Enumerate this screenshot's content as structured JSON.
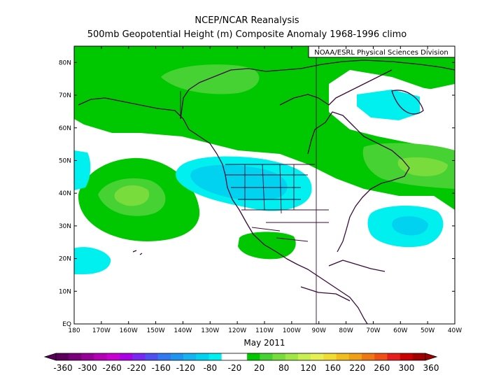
{
  "title": {
    "line1": "NCEP/NCAR Reanalysis",
    "line2": "500mb Geopotential Height (m) Composite Anomaly 1968-1996 climo"
  },
  "credit": "NOAA/ESRL Physical Sciences Division",
  "period_label": "May 2011",
  "axes": {
    "lon_labels": [
      "180",
      "170W",
      "160W",
      "150W",
      "140W",
      "130W",
      "120W",
      "110W",
      "100W",
      "90W",
      "80W",
      "70W",
      "60W",
      "50W",
      "40W"
    ],
    "lat_labels": [
      "EQ",
      "10N",
      "20N",
      "30N",
      "40N",
      "50N",
      "60N",
      "70N",
      "80N"
    ],
    "lon_range": [
      -180,
      -40
    ],
    "lat_range": [
      0,
      85
    ]
  },
  "colorbar": {
    "labels": [
      "-360",
      "-300",
      "-260",
      "-220",
      "-160",
      "-120",
      "-80",
      "-20",
      "20",
      "80",
      "120",
      "160",
      "220",
      "260",
      "300",
      "360"
    ],
    "colors": [
      "#5a005a",
      "#780078",
      "#960096",
      "#b400b4",
      "#c800d2",
      "#aa00e6",
      "#7828f0",
      "#5050f0",
      "#3278f0",
      "#1e96f0",
      "#14b4f0",
      "#00d2f0",
      "#00f0f0",
      "#ffffff",
      "#ffffff",
      "#00c800",
      "#46d232",
      "#78dc3c",
      "#a0e646",
      "#c8f050",
      "#e6f050",
      "#f0dc32",
      "#f0be1e",
      "#f0a014",
      "#f07814",
      "#f05014",
      "#e61e1e",
      "#c80000",
      "#a00000"
    ]
  },
  "map_data": {
    "type": "contour-filled map",
    "variable": "500mb geopotential height anomaly (m)",
    "features": [
      {
        "sign": "positive",
        "range": "20 to 80",
        "region": "Arctic / Alaska / northern Canada"
      },
      {
        "sign": "positive",
        "range": "80 to 120",
        "region": "Beaufort Sea center near 72N 145W"
      },
      {
        "sign": "positive",
        "range": "80 to 120",
        "region": "North Pacific center near 42N 158W"
      },
      {
        "sign": "positive",
        "range": "80 to 120",
        "region": "Newfoundland / NW Atlantic near 48N 52W"
      },
      {
        "sign": "positive",
        "range": "20 to 80",
        "region": "Mexico near 22N 107W"
      },
      {
        "sign": "negative",
        "range": "-80 to -20",
        "region": "Western US center near 43N 125W"
      },
      {
        "sign": "negative",
        "range": "-80 to -20",
        "region": "Atlantic near 31N 57W"
      },
      {
        "sign": "negative",
        "range": "-20 to -80",
        "region": "Labrador Sea / Baffin near 68N 58W"
      },
      {
        "sign": "negative",
        "range": "-20 to -80",
        "region": "Central Pacific near 22N 170W"
      }
    ]
  }
}
